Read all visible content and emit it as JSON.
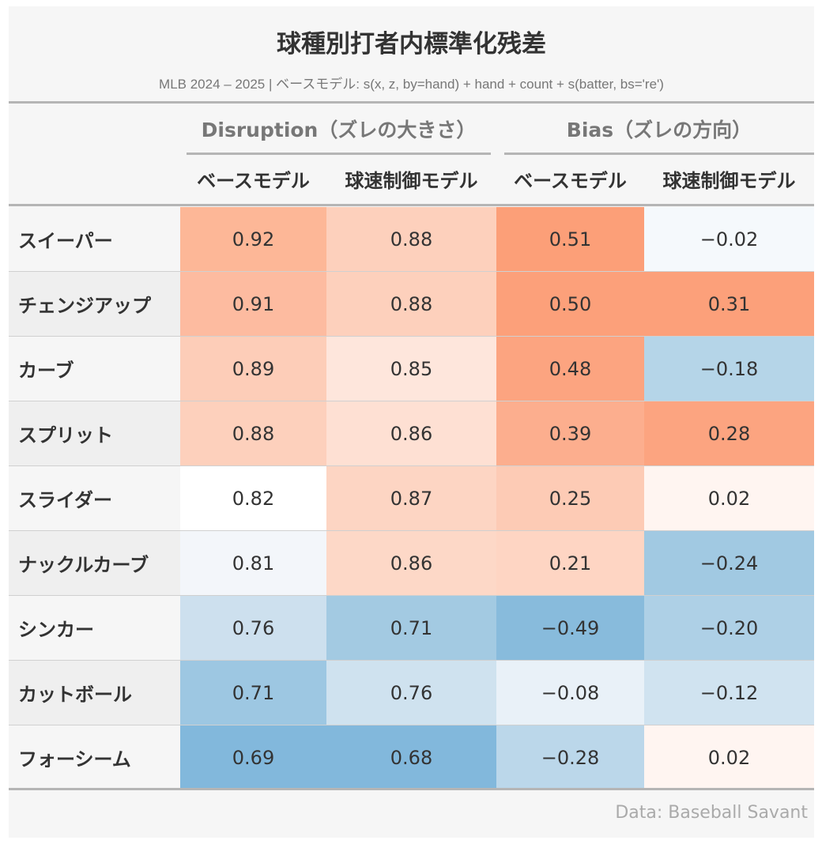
{
  "title": "球種別打者内標準化残差",
  "subtitle": "MLB 2024 – 2025 | ベースモデル: s(x, z, by=hand) + hand + count + s(batter,  bs='re')",
  "spanners": [
    "Disruption（ズレの大きさ）",
    "Bias（ズレの方向）"
  ],
  "columns": [
    "ベースモデル",
    "球速制御モデル",
    "ベースモデル",
    "球速制御モデル"
  ],
  "source": "Data: Baseball Savant",
  "chart_data": {
    "type": "table",
    "rows": [
      {
        "label": "スイーパー",
        "values": [
          "0.92",
          "0.88",
          "0.51",
          "−0.02"
        ],
        "colors": [
          "#fdb797",
          "#fdd0bc",
          "#fc9f78",
          "#f5f9fc"
        ]
      },
      {
        "label": "チェンジアップ",
        "values": [
          "0.91",
          "0.88",
          "0.50",
          "0.31"
        ],
        "colors": [
          "#fdbba0",
          "#fdd0bc",
          "#fca07a",
          "#fca07a"
        ]
      },
      {
        "label": "カーブ",
        "values": [
          "0.89",
          "0.85",
          "0.48",
          "−0.18"
        ],
        "colors": [
          "#fdcdb8",
          "#fee6dc",
          "#fca480",
          "#b5d5e8"
        ]
      },
      {
        "label": "スプリット",
        "values": [
          "0.88",
          "0.86",
          "0.39",
          "0.28"
        ],
        "colors": [
          "#fdd0bc",
          "#fee0d3",
          "#fcae8e",
          "#fca480"
        ]
      },
      {
        "label": "スライダー",
        "values": [
          "0.82",
          "0.87",
          "0.25",
          "0.02"
        ],
        "colors": [
          "#ffffff",
          "#fdd5c3",
          "#fdcbb5",
          "#fff5f1"
        ]
      },
      {
        "label": "ナックルカーブ",
        "values": [
          "0.81",
          "0.86",
          "0.21",
          "−0.24"
        ],
        "colors": [
          "#f3f6fa",
          "#fdd8c7",
          "#fed5c3",
          "#a1c9e2"
        ]
      },
      {
        "label": "シンカー",
        "values": [
          "0.76",
          "0.71",
          "−0.49",
          "−0.20"
        ],
        "colors": [
          "#cde0ee",
          "#a3cae2",
          "#88bbdc",
          "#aed0e6"
        ]
      },
      {
        "label": "カットボール",
        "values": [
          "0.71",
          "0.76",
          "−0.08",
          "−0.12"
        ],
        "colors": [
          "#9dc7e2",
          "#cfe2ef",
          "#e9f1f8",
          "#d0e3f0"
        ]
      },
      {
        "label": "フォーシーム",
        "values": [
          "0.69",
          "0.68",
          "−0.28",
          "0.02"
        ],
        "colors": [
          "#82b8dc",
          "#82b8dc",
          "#bbd7ea",
          "#fff5f1"
        ]
      }
    ]
  }
}
